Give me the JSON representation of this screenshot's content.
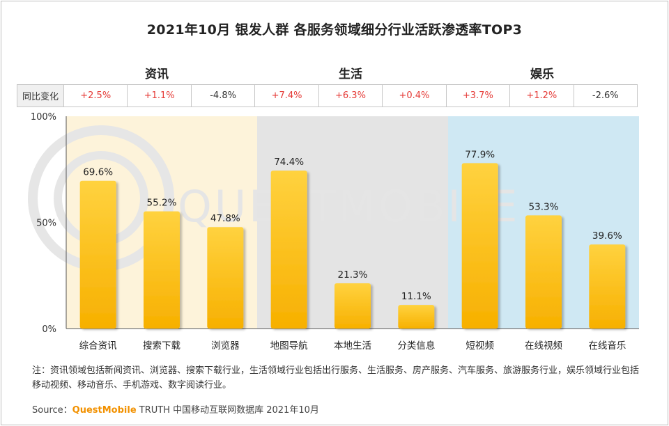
{
  "title": "2021年10月 银发人群 各服务领域细分行业活跃渗透率TOP3",
  "groups": [
    {
      "label": "资讯",
      "color": "#fdf3da"
    },
    {
      "label": "生活",
      "color": "#e4e4e4"
    },
    {
      "label": "娱乐",
      "color": "#cfe8f3"
    }
  ],
  "yoy": {
    "label": "同比变化",
    "values": [
      "+2.5%",
      "+1.1%",
      "-4.8%",
      "+7.4%",
      "+6.3%",
      "+0.4%",
      "+3.7%",
      "+1.2%",
      "-2.6%"
    ]
  },
  "watermark": "QUESTMOBILE",
  "chart_data": {
    "type": "bar",
    "title": "2021年10月 银发人群 各服务领域细分行业活跃渗透率TOP3",
    "categories": [
      "综合资讯",
      "搜索下载",
      "浏览器",
      "地图导航",
      "本地生活",
      "分类信息",
      "短视频",
      "在线视频",
      "在线音乐"
    ],
    "values": [
      69.6,
      55.2,
      47.8,
      74.4,
      21.3,
      11.1,
      77.9,
      53.3,
      39.6
    ],
    "value_labels": [
      "69.6%",
      "55.2%",
      "47.8%",
      "74.4%",
      "21.3%",
      "11.1%",
      "77.9%",
      "53.3%",
      "39.6%"
    ],
    "groups": [
      "资讯",
      "资讯",
      "资讯",
      "生活",
      "生活",
      "生活",
      "娱乐",
      "娱乐",
      "娱乐"
    ],
    "ylim": [
      0,
      100
    ],
    "yticks": [
      0,
      50,
      100
    ],
    "ytick_labels": [
      "0%",
      "50%",
      "100%"
    ],
    "xlabel": "",
    "ylabel": "",
    "colors": {
      "bar_top": "#ffcf3d",
      "bar_bottom": "#f7b200",
      "axis": "#555555"
    }
  },
  "footnote": "注：资讯领域包括新闻资讯、浏览器、搜索下载行业，生活领域行业包括出行服务、生活服务、房产服务、汽车服务、旅游服务行业，娱乐领域行业包括移动视频、移动音乐、手机游戏、数字阅读行业。",
  "source": {
    "prefix": "Source：",
    "brand": "QuestMobile",
    "rest": " TRUTH 中国移动互联网数据库 2021年10月"
  }
}
